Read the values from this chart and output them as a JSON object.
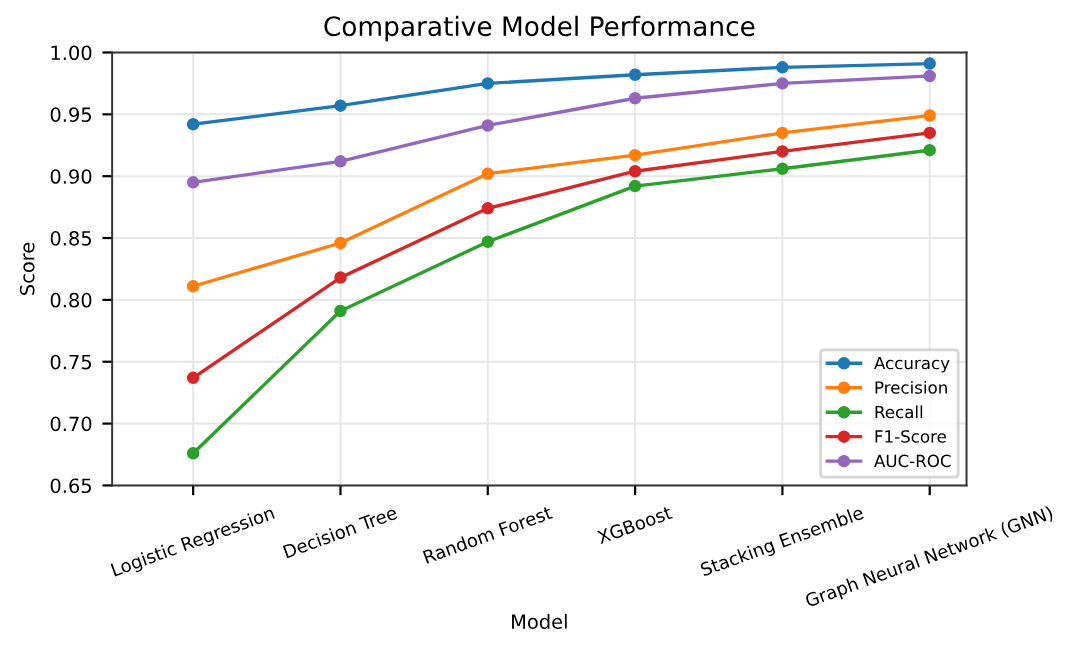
{
  "chart_data": {
    "type": "line",
    "title": "Comparative Model Performance",
    "xlabel": "Model",
    "ylabel": "Score",
    "categories": [
      "Logistic Regression",
      "Decision Tree",
      "Random Forest",
      "XGBoost",
      "Stacking Ensemble",
      "Graph Neural Network (GNN)"
    ],
    "series": [
      {
        "name": "Accuracy",
        "color": "#1f77b4",
        "values": [
          0.942,
          0.957,
          0.975,
          0.982,
          0.988,
          0.991
        ]
      },
      {
        "name": "Precision",
        "color": "#ff7f0e",
        "values": [
          0.811,
          0.846,
          0.902,
          0.917,
          0.935,
          0.949
        ]
      },
      {
        "name": "Recall",
        "color": "#2ca02c",
        "values": [
          0.676,
          0.791,
          0.847,
          0.892,
          0.906,
          0.921
        ]
      },
      {
        "name": "F1-Score",
        "color": "#d62728",
        "values": [
          0.737,
          0.818,
          0.874,
          0.904,
          0.92,
          0.935
        ]
      },
      {
        "name": "AUC-ROC",
        "color": "#9467bd",
        "values": [
          0.895,
          0.912,
          0.941,
          0.963,
          0.975,
          0.981
        ]
      }
    ],
    "ylim": [
      0.65,
      1.0
    ],
    "yticks": [
      {
        "value": 0.65,
        "label": "0.65"
      },
      {
        "value": 0.7,
        "label": "0.70"
      },
      {
        "value": 0.75,
        "label": "0.75"
      },
      {
        "value": 0.8,
        "label": "0.80"
      },
      {
        "value": 0.85,
        "label": "0.85"
      },
      {
        "value": 0.9,
        "label": "0.90"
      },
      {
        "value": 0.95,
        "label": "0.95"
      },
      {
        "value": 1.0,
        "label": "1.00"
      }
    ],
    "grid": true,
    "legend": "bottom right",
    "marker": "circle",
    "line_style": "solid"
  }
}
